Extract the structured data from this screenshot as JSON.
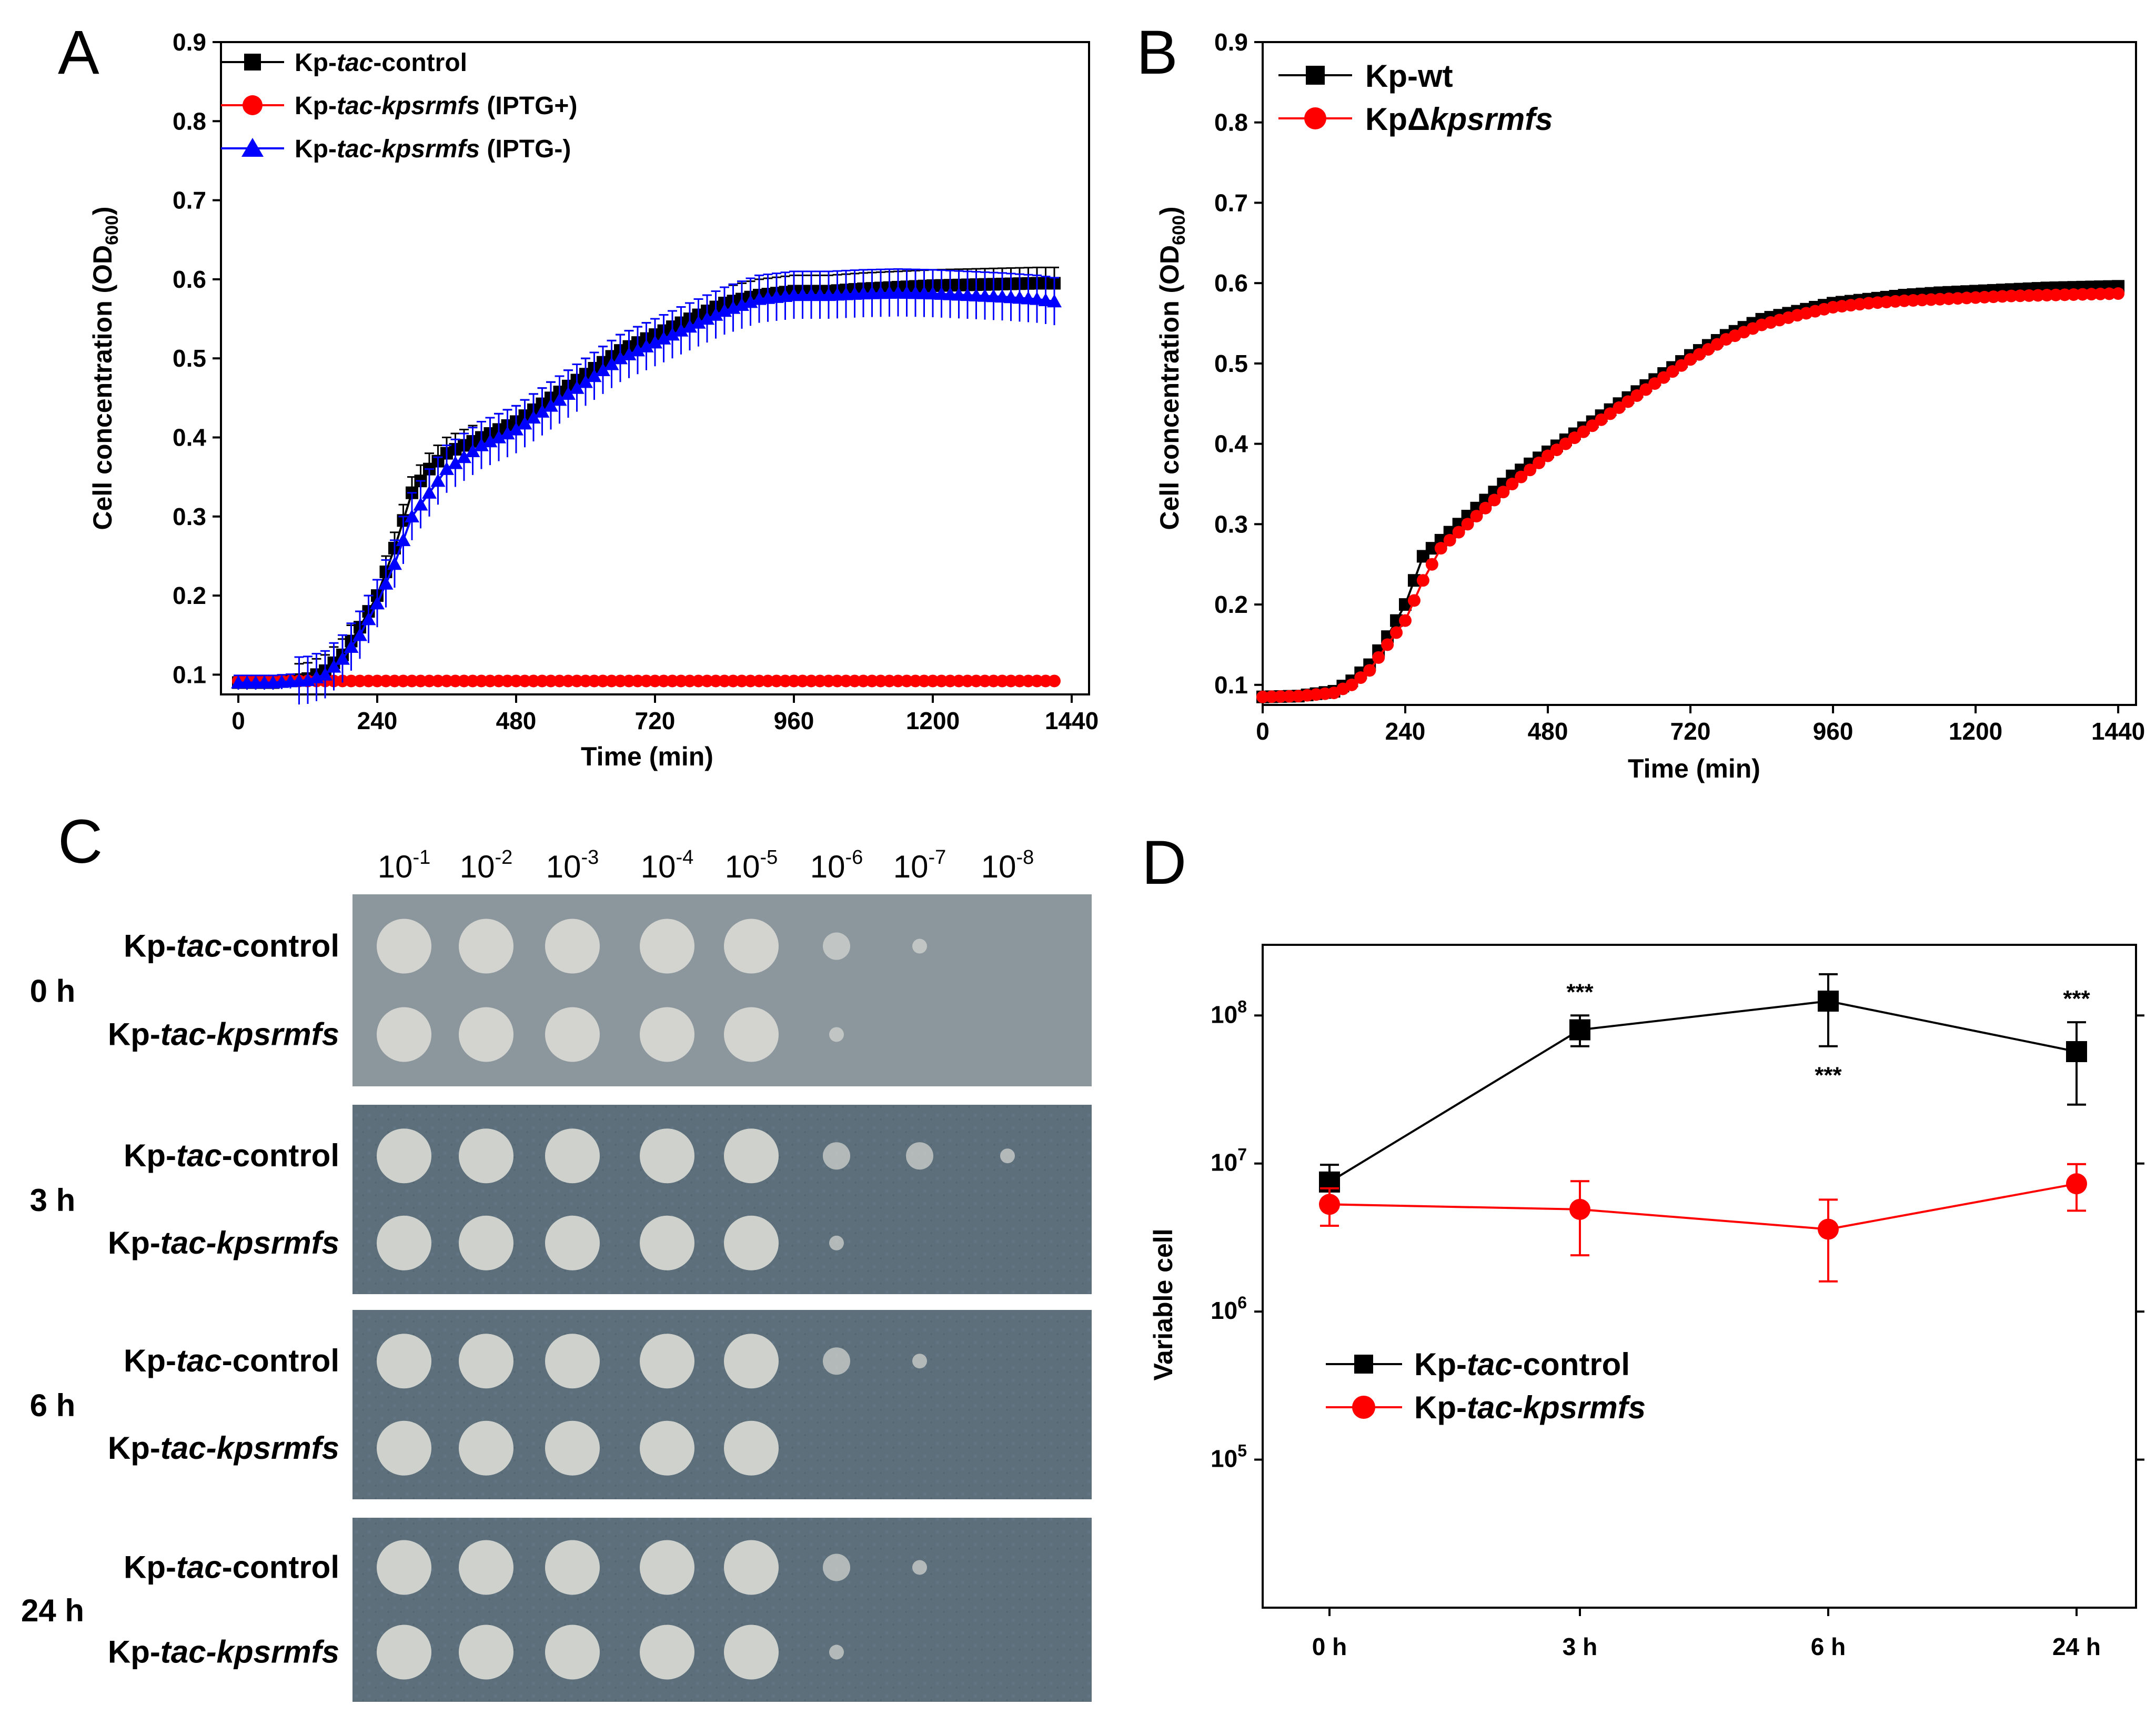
{
  "panels": {
    "A": {
      "letter": "A"
    },
    "B": {
      "letter": "B"
    },
    "C": {
      "letter": "C"
    },
    "D": {
      "letter": "D"
    }
  },
  "panel_c": {
    "dilutions": [
      {
        "base": "10",
        "exp": "-1"
      },
      {
        "base": "10",
        "exp": "-2"
      },
      {
        "base": "10",
        "exp": "-3"
      },
      {
        "base": "10",
        "exp": "-4"
      },
      {
        "base": "10",
        "exp": "-5"
      },
      {
        "base": "10",
        "exp": "-6"
      },
      {
        "base": "10",
        "exp": "-7"
      },
      {
        "base": "10",
        "exp": "-8"
      }
    ],
    "time_points": [
      "0 h",
      "3 h",
      "6 h",
      "24 h"
    ],
    "row_labels": {
      "control": {
        "prefix": "Kp-",
        "italic": "tac",
        "suffix": "-control"
      },
      "mutant": {
        "prefix": "Kp-",
        "italic": "tac-kpsrmfs",
        "suffix": ""
      }
    },
    "spots_visible": [
      {
        "time": "0 h",
        "control": 7,
        "mutant": 6
      },
      {
        "time": "3 h",
        "control": 8,
        "mutant": 6
      },
      {
        "time": "6 h",
        "control": 7,
        "mutant": 5
      },
      {
        "time": "24 h",
        "control": 7,
        "mutant": 6
      }
    ]
  },
  "chart_data": [
    {
      "id": "A",
      "type": "line",
      "xlabel": "Time (min)",
      "ylabel": "Cell concentration (OD600)",
      "ylabel_main": "Cell concentration (OD",
      "ylabel_sub": "600",
      "ylabel_end": ")",
      "xlim": [
        -30,
        1470
      ],
      "ylim": [
        0.075,
        0.9
      ],
      "xticks": [
        0,
        240,
        480,
        720,
        960,
        1200,
        1440
      ],
      "yticks": [
        0.1,
        0.2,
        0.3,
        0.4,
        0.5,
        0.6,
        0.7,
        0.8,
        0.9
      ],
      "legend_position": "top-left",
      "series": [
        {
          "name": "Kp-tac-control",
          "legend": {
            "prefix": "Kp-",
            "italic": "tac",
            "suffix": "-control"
          },
          "color": "#000000",
          "marker": "square",
          "x": [
            0,
            60,
            120,
            150,
            180,
            210,
            240,
            270,
            300,
            330,
            360,
            420,
            480,
            540,
            600,
            660,
            720,
            780,
            840,
            900,
            960,
            1020,
            1080,
            1140,
            1200,
            1260,
            1320,
            1380,
            1410
          ],
          "y": [
            0.09,
            0.09,
            0.095,
            0.105,
            0.125,
            0.16,
            0.2,
            0.26,
            0.33,
            0.36,
            0.38,
            0.4,
            0.42,
            0.45,
            0.48,
            0.51,
            0.53,
            0.55,
            0.57,
            0.58,
            0.585,
            0.585,
            0.588,
            0.59,
            0.592,
            0.593,
            0.594,
            0.595,
            0.595
          ],
          "error": 0.02
        },
        {
          "name": "Kp-tac-kpsrmfs (IPTG+)",
          "legend": {
            "prefix": "Kp-",
            "italic": "tac-kpsrmfs",
            "suffix": " (IPTG+)"
          },
          "color": "#ff0000",
          "marker": "circle",
          "x": [
            0,
            1410
          ],
          "y": [
            0.092,
            0.092
          ],
          "error": 0.002
        },
        {
          "name": "Kp-tac-kpsrmfs (IPTG-)",
          "legend": {
            "prefix": "Kp-",
            "italic": "tac-kpsrmfs",
            "suffix": " (IPTG-)"
          },
          "color": "#0000ff",
          "marker": "triangle",
          "x": [
            0,
            60,
            120,
            150,
            180,
            210,
            240,
            270,
            300,
            330,
            360,
            420,
            480,
            540,
            600,
            660,
            720,
            780,
            840,
            900,
            960,
            1020,
            1080,
            1140,
            1200,
            1260,
            1320,
            1380,
            1410
          ],
          "y": [
            0.09,
            0.09,
            0.093,
            0.1,
            0.12,
            0.15,
            0.19,
            0.24,
            0.3,
            0.33,
            0.36,
            0.39,
            0.41,
            0.44,
            0.47,
            0.5,
            0.52,
            0.54,
            0.56,
            0.575,
            0.58,
            0.58,
            0.582,
            0.583,
            0.582,
            0.58,
            0.578,
            0.575,
            0.572
          ],
          "error": 0.03
        }
      ]
    },
    {
      "id": "B",
      "type": "line",
      "xlabel": "Time (min)",
      "ylabel": "Cell concentration (OD600)",
      "ylabel_main": "Cell concentration (OD",
      "ylabel_sub": "600",
      "ylabel_end": ")",
      "xlim": [
        0,
        1470
      ],
      "ylim": [
        0.075,
        0.9
      ],
      "xticks": [
        0,
        240,
        480,
        720,
        960,
        1200,
        1440
      ],
      "yticks": [
        0.1,
        0.2,
        0.3,
        0.4,
        0.5,
        0.6,
        0.7,
        0.8,
        0.9
      ],
      "legend_position": "top-left",
      "series": [
        {
          "name": "Kp-wt",
          "legend": {
            "prefix": "Kp-wt",
            "italic": "",
            "suffix": ""
          },
          "color": "#000000",
          "marker": "square",
          "x": [
            0,
            60,
            120,
            150,
            180,
            210,
            240,
            270,
            300,
            360,
            420,
            480,
            540,
            600,
            660,
            720,
            780,
            840,
            900,
            960,
            1020,
            1080,
            1140,
            1200,
            1260,
            1320,
            1380,
            1440
          ],
          "y": [
            0.085,
            0.086,
            0.092,
            0.105,
            0.125,
            0.16,
            0.2,
            0.26,
            0.28,
            0.32,
            0.36,
            0.39,
            0.42,
            0.45,
            0.48,
            0.51,
            0.535,
            0.555,
            0.565,
            0.575,
            0.58,
            0.585,
            0.588,
            0.59,
            0.592,
            0.594,
            0.595,
            0.596
          ],
          "error": 0.005
        },
        {
          "name": "KpΔkpsrmfs",
          "legend": {
            "prefix": "KpΔ",
            "italic": "kpsrmfs",
            "suffix": ""
          },
          "color": "#ff0000",
          "marker": "circle",
          "x": [
            0,
            60,
            120,
            150,
            180,
            210,
            240,
            270,
            300,
            360,
            420,
            480,
            540,
            600,
            660,
            720,
            780,
            840,
            900,
            960,
            1020,
            1080,
            1140,
            1200,
            1260,
            1320,
            1380,
            1440
          ],
          "y": [
            0.085,
            0.086,
            0.09,
            0.1,
            0.118,
            0.15,
            0.18,
            0.23,
            0.27,
            0.31,
            0.35,
            0.385,
            0.415,
            0.445,
            0.475,
            0.505,
            0.53,
            0.548,
            0.56,
            0.57,
            0.575,
            0.578,
            0.58,
            0.582,
            0.584,
            0.585,
            0.586,
            0.587
          ],
          "error": 0.005
        }
      ]
    },
    {
      "id": "D",
      "type": "line",
      "xlabel": "",
      "ylabel": "Variable cell",
      "yscale": "log",
      "ylim": [
        10000,
        300000000
      ],
      "categories": [
        "0 h",
        "3 h",
        "6 h",
        "24 h"
      ],
      "ytick_exponents": [
        "5",
        "6",
        "7",
        "8"
      ],
      "ytick_base": "10",
      "legend_position": "bottom-left",
      "series": [
        {
          "name": "Kp-tac-control",
          "legend": {
            "prefix": "Kp-",
            "italic": "tac",
            "suffix": "-control"
          },
          "color": "#000000",
          "marker": "square",
          "values": [
            7500000,
            80000000,
            125000000,
            57000000
          ],
          "err_low": [
            5500000,
            62000000,
            62000000,
            25000000
          ],
          "err_high": [
            9800000,
            100000000,
            190000000,
            90000000
          ]
        },
        {
          "name": "Kp-tac-kpsrmfs",
          "legend": {
            "prefix": "Kp-",
            "italic": "tac-kpsrmfs",
            "suffix": ""
          },
          "color": "#ff0000",
          "marker": "circle",
          "values": [
            5300000,
            4900000,
            3600000,
            7300000
          ],
          "err_low": [
            3800000,
            2400000,
            1600000,
            4800000
          ],
          "err_high": [
            6800000,
            7600000,
            5700000,
            9900000
          ]
        }
      ],
      "annotations": [
        {
          "category": "3 h",
          "text": "***",
          "position": "above"
        },
        {
          "category": "6 h",
          "text": "***",
          "position": "below"
        },
        {
          "category": "24 h",
          "text": "***",
          "position": "above"
        }
      ]
    }
  ]
}
